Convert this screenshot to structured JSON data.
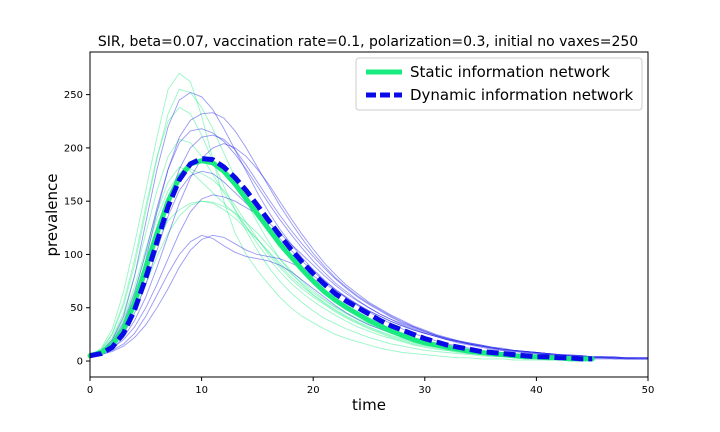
{
  "chart_data": {
    "type": "line",
    "title": "SIR, beta=0.07, vaccination rate=0.1, polarization=0.3, initial no vaxes=250",
    "xlabel": "time",
    "ylabel": "prevalence",
    "xlim": [
      0,
      50
    ],
    "ylim": [
      -15,
      290
    ],
    "xticks": [
      0,
      10,
      20,
      30,
      40,
      50
    ],
    "yticks": [
      0,
      50,
      100,
      150,
      200,
      250
    ],
    "grid": false,
    "legend_position": "top-right",
    "series": [
      {
        "name": "Static information network",
        "role": "mean",
        "color": "#1aeb80",
        "style": "solid",
        "x": [
          0,
          1,
          2,
          3,
          4,
          5,
          6,
          7,
          8,
          9,
          10,
          11,
          12,
          13,
          14,
          15,
          16,
          17,
          18,
          19,
          20,
          21,
          22,
          23,
          24,
          25,
          26,
          27,
          28,
          29,
          30,
          31,
          32,
          33,
          34,
          35,
          36,
          37,
          38,
          39,
          40,
          41,
          42,
          43,
          44,
          45
        ],
        "values": [
          5,
          8,
          15,
          30,
          55,
          88,
          120,
          150,
          172,
          185,
          188,
          186,
          178,
          166,
          152,
          138,
          124,
          110,
          98,
          86,
          75,
          65,
          57,
          50,
          44,
          38,
          33,
          28,
          24,
          20,
          17,
          15,
          13,
          11,
          9,
          8,
          7,
          6,
          5,
          4,
          4,
          3,
          3,
          2,
          2,
          2
        ]
      },
      {
        "name": "Dynamic information network",
        "role": "mean",
        "color": "#0a0ae8",
        "style": "dashed",
        "x": [
          0,
          1,
          2,
          3,
          4,
          5,
          6,
          7,
          8,
          9,
          10,
          11,
          12,
          13,
          14,
          15,
          16,
          17,
          18,
          19,
          20,
          21,
          22,
          23,
          24,
          25,
          26,
          27,
          28,
          29,
          30,
          31,
          32,
          33,
          34,
          35,
          36,
          37,
          38,
          39,
          40,
          41,
          42,
          43,
          44,
          45
        ],
        "values": [
          5,
          7,
          13,
          26,
          48,
          78,
          112,
          145,
          170,
          185,
          190,
          189,
          182,
          172,
          160,
          146,
          132,
          118,
          105,
          93,
          82,
          72,
          63,
          56,
          50,
          44,
          38,
          33,
          29,
          25,
          21,
          18,
          15,
          13,
          11,
          9,
          8,
          7,
          6,
          5,
          4,
          4,
          3,
          3,
          2,
          2
        ]
      }
    ],
    "trajectories": [
      {
        "group": "static",
        "color": "#1aeb80",
        "x_start": 0,
        "values": [
          5,
          12,
          30,
          65,
          110,
          160,
          210,
          255,
          270,
          262,
          230,
          190,
          150,
          120,
          100,
          85,
          72,
          60,
          50,
          42,
          36,
          30,
          25,
          21,
          18,
          15,
          12,
          10,
          8,
          7,
          6,
          5,
          4,
          3,
          3,
          2,
          2,
          2,
          1,
          1,
          1,
          1,
          1,
          1,
          1,
          1
        ]
      },
      {
        "group": "static",
        "color": "#1aeb80",
        "x_start": 0,
        "values": [
          5,
          10,
          25,
          52,
          90,
          140,
          190,
          232,
          255,
          252,
          238,
          218,
          195,
          172,
          150,
          130,
          112,
          96,
          83,
          72,
          62,
          54,
          47,
          41,
          36,
          31,
          27,
          23,
          20,
          17,
          15,
          13,
          11,
          9,
          8,
          7,
          6,
          5,
          4,
          4,
          3,
          3,
          2,
          2,
          2,
          2
        ]
      },
      {
        "group": "static",
        "color": "#1aeb80",
        "x_start": 0,
        "values": [
          5,
          9,
          20,
          40,
          70,
          105,
          140,
          168,
          182,
          178,
          168,
          158,
          148,
          138,
          126,
          114,
          102,
          90,
          79,
          70,
          62,
          55,
          48,
          42,
          37,
          32,
          28,
          24,
          21,
          18,
          16,
          14,
          12,
          10,
          9,
          8,
          7,
          6,
          5,
          4,
          4,
          3,
          3,
          2,
          2,
          2
        ]
      },
      {
        "group": "static",
        "color": "#1aeb80",
        "x_start": 0,
        "values": [
          5,
          8,
          16,
          32,
          56,
          85,
          112,
          132,
          142,
          148,
          150,
          149,
          145,
          139,
          130,
          120,
          108,
          96,
          85,
          75,
          66,
          58,
          51,
          45,
          40,
          35,
          31,
          27,
          24,
          21,
          18,
          16,
          14,
          12,
          10,
          9,
          8,
          7,
          6,
          5,
          4,
          4,
          3,
          3,
          2,
          2
        ]
      },
      {
        "group": "static",
        "color": "#1aeb80",
        "x_start": 0,
        "values": [
          5,
          9,
          19,
          38,
          66,
          100,
          134,
          160,
          176,
          180,
          176,
          170,
          160,
          146,
          130,
          115,
          100,
          88,
          77,
          68,
          60,
          53,
          46,
          40,
          35,
          30,
          26,
          22,
          19,
          16,
          14,
          12,
          10,
          9,
          8,
          7,
          6,
          5,
          4,
          4,
          3,
          3,
          2,
          2,
          2,
          2
        ]
      },
      {
        "group": "static",
        "color": "#1aeb80",
        "x_start": 0,
        "values": [
          5,
          11,
          26,
          55,
          95,
          145,
          192,
          225,
          238,
          232,
          212,
          188,
          164,
          142,
          122,
          104,
          88,
          75,
          64,
          55,
          47,
          40,
          35,
          30,
          26,
          22,
          19,
          16,
          14,
          12,
          10,
          9,
          8,
          7,
          6,
          5,
          4,
          4,
          3,
          3,
          2,
          2,
          2,
          1,
          1,
          1
        ]
      },
      {
        "group": "static",
        "color": "#1aeb80",
        "x_start": 0,
        "values": [
          5,
          8,
          15,
          28,
          48,
          72,
          98,
          120,
          136,
          146,
          150,
          148,
          142,
          134,
          124,
          114,
          103,
          92,
          82,
          73,
          64,
          57,
          50,
          44,
          39,
          34,
          30,
          26,
          23,
          20,
          17,
          15,
          13,
          11,
          10,
          8,
          7,
          6,
          5,
          5,
          4,
          3,
          3,
          2,
          2,
          2
        ]
      },
      {
        "group": "static",
        "color": "#1aeb80",
        "x_start": 0,
        "values": [
          5,
          10,
          22,
          45,
          80,
          120,
          160,
          192,
          208,
          205,
          192,
          175,
          158,
          142,
          126,
          110,
          96,
          84,
          73,
          64,
          56,
          49,
          43,
          37,
          32,
          28,
          24,
          21,
          18,
          15,
          13,
          11,
          10,
          8,
          7,
          6,
          5,
          5,
          4,
          3,
          3,
          2,
          2,
          2,
          1,
          1
        ]
      },
      {
        "group": "dynamic",
        "color": "#1a1ae8",
        "x_start": 0,
        "values": [
          5,
          6,
          10,
          16,
          26,
          42,
          62,
          82,
          100,
          112,
          118,
          115,
          108,
          102,
          98,
          96,
          94,
          90,
          84,
          76,
          68,
          60,
          52,
          45,
          39,
          34,
          30,
          26,
          23,
          20,
          17,
          15,
          13,
          11,
          10,
          9,
          8,
          7,
          6,
          5,
          5,
          4,
          4,
          3,
          3,
          3,
          3,
          2,
          2,
          2,
          2
        ]
      },
      {
        "group": "dynamic",
        "color": "#1a1ae8",
        "x_start": 0,
        "values": [
          5,
          9,
          20,
          42,
          80,
          130,
          180,
          220,
          245,
          252,
          248,
          236,
          218,
          198,
          178,
          158,
          140,
          124,
          110,
          97,
          86,
          76,
          67,
          59,
          52,
          46,
          40,
          35,
          30,
          26,
          22,
          19,
          16,
          14,
          12,
          10,
          9,
          8,
          7,
          6,
          5,
          4,
          4,
          3,
          3,
          2,
          2,
          2,
          2,
          2,
          2
        ]
      },
      {
        "group": "dynamic",
        "color": "#1a1ae8",
        "x_start": 0,
        "values": [
          5,
          8,
          16,
          32,
          58,
          95,
          140,
          180,
          210,
          226,
          232,
          233,
          228,
          216,
          200,
          182,
          164,
          146,
          130,
          115,
          101,
          89,
          78,
          69,
          61,
          54,
          48,
          42,
          37,
          32,
          28,
          24,
          21,
          18,
          16,
          14,
          12,
          10,
          9,
          8,
          7,
          6,
          5,
          4,
          4,
          3,
          3,
          3,
          2,
          2,
          2
        ]
      },
      {
        "group": "dynamic",
        "color": "#1a1ae8",
        "x_start": 0,
        "values": [
          5,
          7,
          12,
          22,
          38,
          60,
          88,
          118,
          148,
          172,
          190,
          200,
          204,
          200,
          192,
          180,
          166,
          150,
          134,
          119,
          105,
          92,
          81,
          71,
          63,
          55,
          49,
          43,
          38,
          33,
          29,
          25,
          22,
          19,
          17,
          15,
          13,
          11,
          10,
          9,
          8,
          7,
          6,
          5,
          5,
          4,
          4,
          3,
          3,
          3,
          3
        ]
      },
      {
        "group": "dynamic",
        "color": "#1a1ae8",
        "x_start": 0,
        "values": [
          5,
          7,
          13,
          25,
          45,
          72,
          104,
          136,
          160,
          174,
          178,
          176,
          168,
          158,
          148,
          137,
          126,
          115,
          104,
          94,
          84,
          75,
          67,
          60,
          53,
          47,
          42,
          37,
          33,
          29,
          26,
          23,
          20,
          18,
          16,
          14,
          12,
          11,
          10,
          9,
          8,
          7,
          6,
          5,
          5,
          4,
          4,
          3,
          3,
          3,
          3
        ]
      },
      {
        "group": "dynamic",
        "color": "#1a1ae8",
        "x_start": 0,
        "values": [
          5,
          6,
          9,
          14,
          22,
          34,
          50,
          68,
          88,
          104,
          114,
          118,
          116,
          110,
          104,
          100,
          98,
          96,
          92,
          87,
          80,
          73,
          66,
          59,
          53,
          47,
          42,
          37,
          33,
          29,
          26,
          23,
          20,
          18,
          16,
          14,
          12,
          11,
          10,
          9,
          8,
          7,
          6,
          5,
          5,
          4,
          4,
          4,
          3,
          3,
          3
        ]
      },
      {
        "group": "dynamic",
        "color": "#1a1ae8",
        "x_start": 0,
        "values": [
          5,
          8,
          18,
          36,
          64,
          102,
          144,
          180,
          205,
          216,
          218,
          214,
          206,
          194,
          180,
          164,
          148,
          133,
          119,
          106,
          94,
          83,
          73,
          65,
          57,
          50,
          44,
          39,
          34,
          30,
          26,
          23,
          20,
          17,
          15,
          13,
          11,
          10,
          9,
          8,
          7,
          6,
          5,
          4,
          4,
          3,
          3,
          3,
          2,
          2,
          2
        ]
      },
      {
        "group": "dynamic",
        "color": "#1a1ae8",
        "x_start": 0,
        "values": [
          5,
          7,
          14,
          28,
          50,
          80,
          115,
          150,
          180,
          200,
          210,
          212,
          208,
          198,
          184,
          168,
          152,
          137,
          123,
          110,
          98,
          87,
          77,
          68,
          60,
          53,
          47,
          41,
          36,
          32,
          28,
          24,
          21,
          19,
          16,
          14,
          13,
          11,
          10,
          9,
          8,
          7,
          6,
          5,
          4,
          4,
          3,
          3,
          3,
          2,
          2
        ]
      },
      {
        "group": "dynamic",
        "color": "#1a1ae8",
        "x_start": 0,
        "values": [
          5,
          7,
          12,
          20,
          32,
          50,
          72,
          96,
          120,
          140,
          152,
          156,
          154,
          150,
          144,
          138,
          130,
          120,
          110,
          100,
          90,
          80,
          71,
          63,
          56,
          50,
          44,
          39,
          35,
          31,
          27,
          24,
          21,
          19,
          17,
          15,
          13,
          12,
          10,
          9,
          8,
          7,
          6,
          6,
          5,
          4,
          4,
          4,
          3,
          3,
          3
        ]
      }
    ]
  }
}
